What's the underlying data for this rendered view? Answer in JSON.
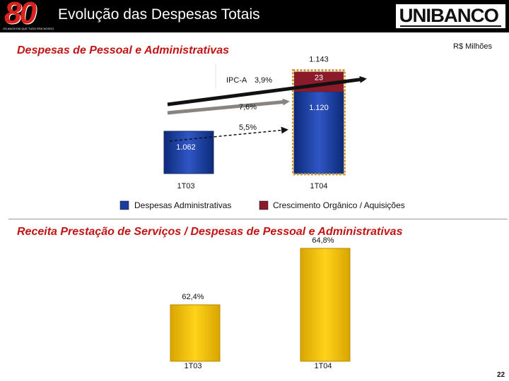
{
  "header": {
    "title": "Evolução das Despesas Totais",
    "anniversary_logo": "80",
    "anniversary_tagline": "OS ANOS EM QUE TUDO ERA NOSSO",
    "brand": "UNIBANCO",
    "background": "#000000"
  },
  "units": "R$ Milhões",
  "page_number": "22",
  "chart_data": [
    {
      "type": "bar",
      "stacked": true,
      "title": "Despesas de Pessoal e Administrativas",
      "categories": [
        "1T03",
        "1T04"
      ],
      "series": [
        {
          "name": "Despesas Administrativas",
          "values": [
            1062,
            1120
          ],
          "labels": [
            "1.062",
            "1.120"
          ],
          "color": "#1a3c9c"
        },
        {
          "name": "Crescimento Orgânico / Aquisições",
          "values": [
            0,
            23
          ],
          "labels": [
            "",
            "23"
          ],
          "color": "#8b1a2a"
        }
      ],
      "totals": {
        "1T04": "1.143"
      },
      "annotations": [
        {
          "text": "IPC-A",
          "value": "3,9%"
        },
        {
          "text": "7,6%"
        },
        {
          "text": "5,5%"
        }
      ],
      "legend_position": "bottom"
    },
    {
      "type": "bar",
      "title": "Receita Prestação de Serviços / Despesas de Pessoal e Administrativas",
      "categories": [
        "1T03",
        "1T04"
      ],
      "values": [
        62.4,
        64.8
      ],
      "labels": [
        "62,4%",
        "64,8%"
      ],
      "color": "#f2c200"
    }
  ]
}
